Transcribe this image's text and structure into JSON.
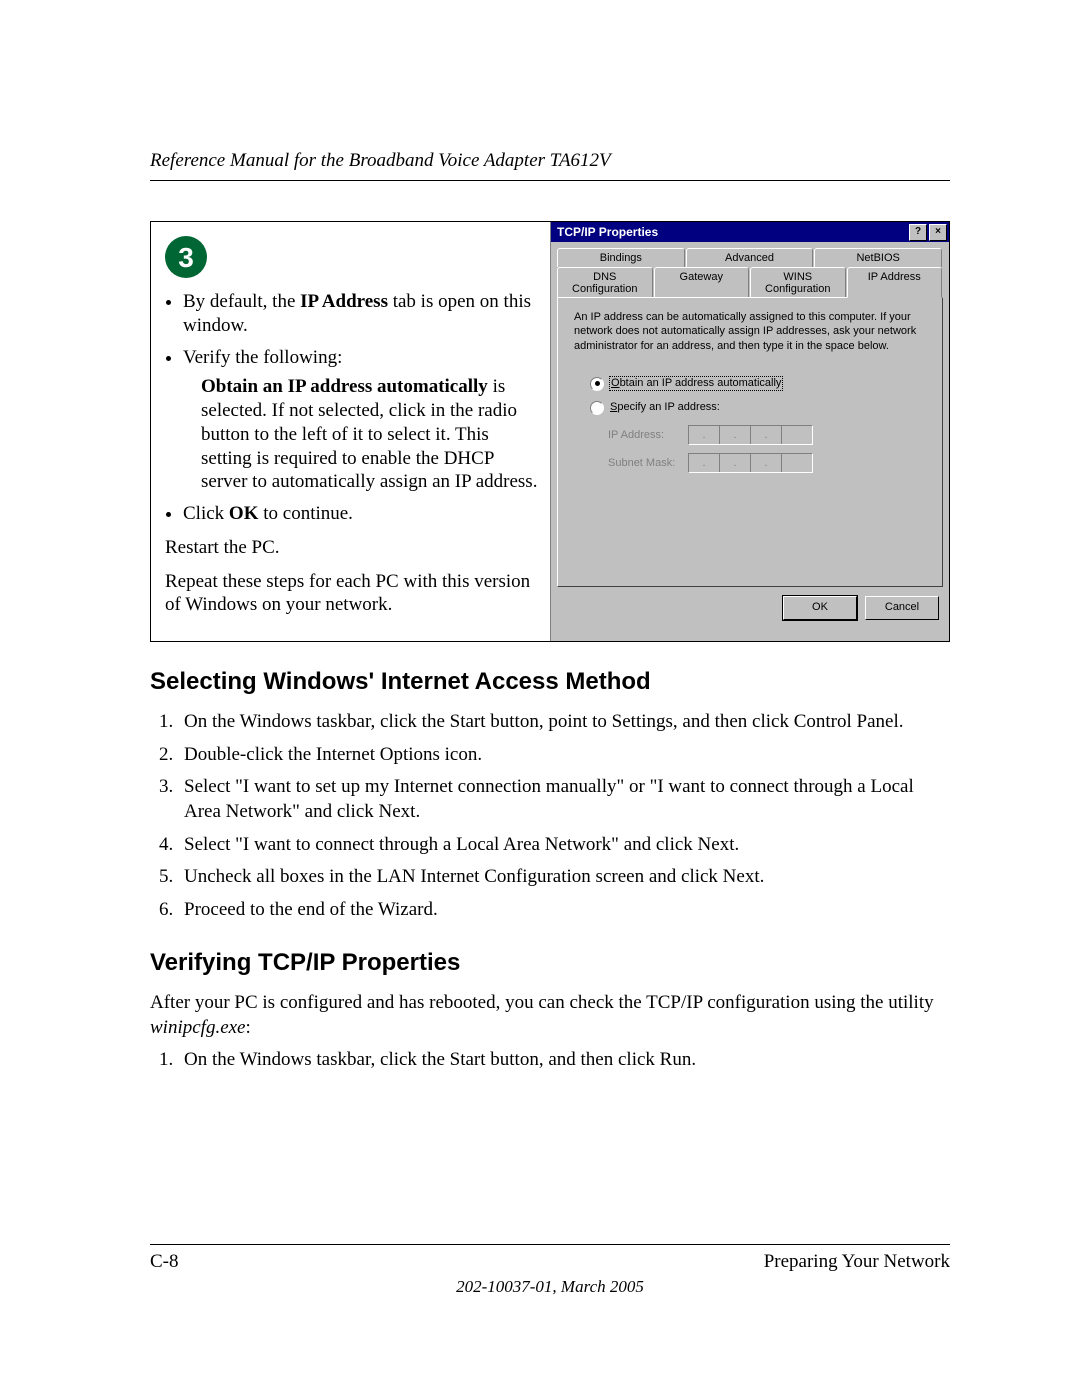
{
  "header": {
    "title": "Reference Manual for the Broadband Voice Adapter TA612V"
  },
  "step": {
    "number": "3",
    "bullet1_pre": "By default, the ",
    "bullet1_bold": "IP Address",
    "bullet1_post": " tab is open on this window.",
    "bullet2": "Verify the following:",
    "nested_bold": "Obtain an IP address automatically",
    "nested_post": " is selected. If not selected, click in the radio button to the left of it to select it.  This setting is required to enable the DHCP server to automatically assign an IP address.",
    "bullet3_pre": "Click ",
    "bullet3_bold": "OK",
    "bullet3_post": " to continue.",
    "restart": "Restart the PC.",
    "repeat": "Repeat these steps for each PC with this version of Windows on your network."
  },
  "dialog": {
    "title": "TCP/IP Properties",
    "help_btn": "?",
    "close_btn": "×",
    "tabs_row1": [
      "Bindings",
      "Advanced",
      "NetBIOS"
    ],
    "tabs_row2": [
      "DNS Configuration",
      "Gateway",
      "WINS Configuration",
      "IP Address"
    ],
    "desc": "An IP address can be automatically assigned to this computer. If your network does not automatically assign IP addresses, ask your network administrator for an address, and then type it in the space below.",
    "radio_auto": "Obtain an IP address automatically",
    "radio_specify": "Specify an IP address:",
    "label_ip": "IP Address:",
    "label_mask": "Subnet Mask:",
    "btn_ok": "OK",
    "btn_cancel": "Cancel",
    "colors": {
      "titlebar_bg": "#000080",
      "face_bg": "#c0c0c0",
      "highlight": "#ffffff",
      "shadow": "#808080",
      "text": "#000000",
      "disabled_text": "#808080"
    }
  },
  "section1": {
    "heading": "Selecting Windows' Internet Access Method",
    "steps": [
      "On the Windows taskbar, click the Start button, point to Settings, and then click Control Panel.",
      "Double-click the Internet Options icon.",
      "Select \"I want to set up my Internet connection manually\" or \"I want to connect through a Local Area Network\" and click Next.",
      "Select \"I want to connect through a Local Area Network\" and click Next.",
      "Uncheck all boxes in the LAN Internet Configuration screen and click Next.",
      "Proceed to the end of the Wizard."
    ]
  },
  "section2": {
    "heading": "Verifying TCP/IP Properties",
    "intro_pre": "After your PC is configured and has rebooted, you can check the TCP/IP configuration using the utility ",
    "intro_italic": "winipcfg.exe",
    "intro_post": ":",
    "step1": "On the Windows taskbar, click the Start button, and then click Run."
  },
  "footer": {
    "page": "C-8",
    "section": "Preparing Your Network",
    "date": "202-10037-01, March 2005"
  }
}
